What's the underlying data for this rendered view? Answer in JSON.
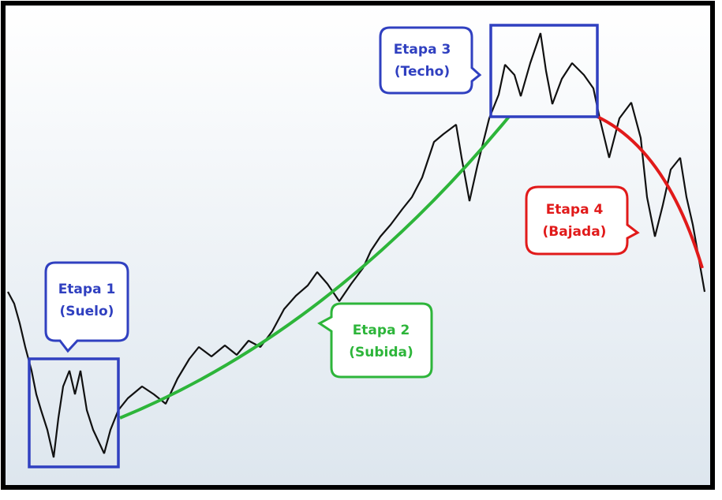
{
  "stages": [
    {
      "label": "Etapa 1",
      "sublabel": "(Suelo)"
    },
    {
      "label": "Etapa 2",
      "sublabel": "(Subida)"
    },
    {
      "label": "Etapa 3",
      "sublabel": "(Techo)"
    },
    {
      "label": "Etapa 4",
      "sublabel": "(Bajada)"
    }
  ]
}
